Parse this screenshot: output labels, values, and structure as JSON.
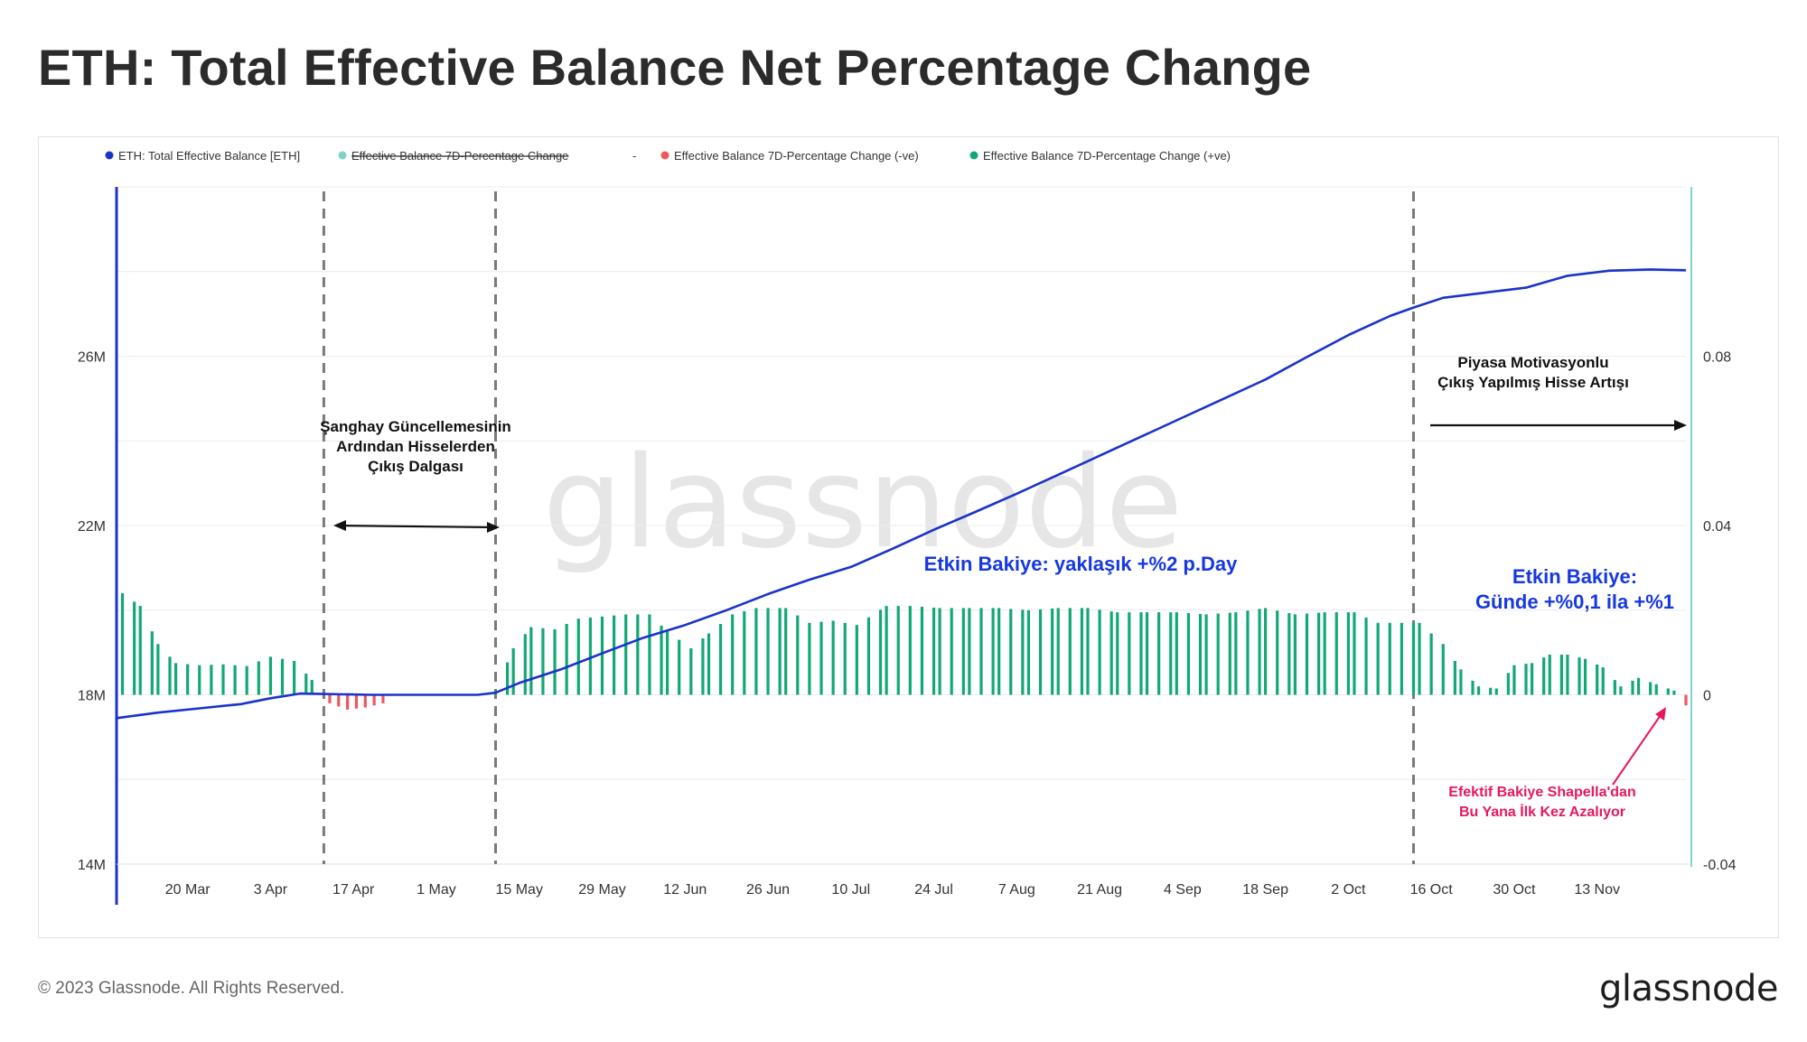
{
  "title": "ETH: Total Effective Balance Net Percentage Change",
  "copyright": "© 2023 Glassnode. All Rights Reserved.",
  "brand": "glassnode",
  "watermark": "glassnode",
  "colors": {
    "balance_line": "#1a33c9",
    "positive_bar": "#12a876",
    "negative_bar": "#f0555c",
    "neutral_legend": "#7fd3c8",
    "right_axis": "#7fd3c8",
    "left_axis": "#1a33c9",
    "annotation_blue": "#1638e0",
    "annotation_pink": "#e8175d"
  },
  "legend": [
    {
      "label": "ETH: Total Effective Balance [ETH]",
      "color": "#1a33c9",
      "strikethrough": false
    },
    {
      "label": "Effective Balance 7D-Percentage Change",
      "color": "#7fd3c8",
      "strikethrough": true
    },
    {
      "label": "-",
      "color": null,
      "strikethrough": false
    },
    {
      "label": "Effective Balance 7D-Percentage Change (-ve)",
      "color": "#f0555c",
      "strikethrough": false
    },
    {
      "label": "Effective Balance 7D-Percentage Change (+ve)",
      "color": "#12a876",
      "strikethrough": false
    }
  ],
  "annotations": {
    "shanghai": [
      "Şanghay Güncellemesinin",
      "Ardından Hisselerden",
      "Çıkış Dalgası"
    ],
    "daily_rate": "Etkin Bakiye: yaklaşık +%2 p.Day",
    "market": [
      "Piyasa Motivasyonlu",
      "Çıkış Yapılmış Hisse Artışı"
    ],
    "late_rate": [
      "Etkin Bakiye:",
      "Günde +%0,1 ila +%1"
    ],
    "first_drop": [
      "Efektif Bakiye Shapella'dan",
      "Bu Yana İlk Kez Azalıyor"
    ]
  },
  "chart_data": {
    "type": "line",
    "title": "ETH: Total Effective Balance Net Percentage Change",
    "x_tick_labels": [
      "20 Mar",
      "3 Apr",
      "17 Apr",
      "1 May",
      "15 May",
      "29 May",
      "12 Jun",
      "26 Jun",
      "10 Jul",
      "24 Jul",
      "7 Aug",
      "21 Aug",
      "4 Sep",
      "18 Sep",
      "2 Oct",
      "16 Oct",
      "30 Oct",
      "13 Nov"
    ],
    "x_range": [
      "2023-03-08",
      "2023-11-28"
    ],
    "y_left": {
      "ticks": [
        "14M",
        "18M",
        "22M",
        "26M"
      ],
      "values": [
        14000000,
        18000000,
        22000000,
        26000000
      ],
      "range": [
        14000000,
        30000000
      ]
    },
    "y_right": {
      "ticks": [
        "-0.04",
        "0",
        "0.04",
        "0.08"
      ],
      "values": [
        -0.04,
        0,
        0.04,
        0.08
      ],
      "range": [
        -0.04,
        0.12
      ]
    },
    "event_markers": [
      "2023-04-12",
      "2023-05-11",
      "2023-10-13"
    ],
    "series": [
      {
        "name": "ETH: Total Effective Balance [ETH]",
        "axis": "left",
        "points": [
          [
            "2023-03-08",
            17.45
          ],
          [
            "2023-03-15",
            17.58
          ],
          [
            "2023-03-22",
            17.68
          ],
          [
            "2023-03-29",
            17.78
          ],
          [
            "2023-04-03",
            17.92
          ],
          [
            "2023-04-08",
            18.03
          ],
          [
            "2023-04-12",
            18.02
          ],
          [
            "2023-04-20",
            18.0
          ],
          [
            "2023-05-01",
            18.0
          ],
          [
            "2023-05-08",
            18.0
          ],
          [
            "2023-05-11",
            18.05
          ],
          [
            "2023-05-15",
            18.28
          ],
          [
            "2023-05-22",
            18.6
          ],
          [
            "2023-05-29",
            18.98
          ],
          [
            "2023-06-05",
            19.35
          ],
          [
            "2023-06-12",
            19.65
          ],
          [
            "2023-06-19",
            20.0
          ],
          [
            "2023-06-26",
            20.38
          ],
          [
            "2023-07-03",
            20.72
          ],
          [
            "2023-07-10",
            21.02
          ],
          [
            "2023-07-17",
            21.45
          ],
          [
            "2023-07-24",
            21.9
          ],
          [
            "2023-07-31",
            22.32
          ],
          [
            "2023-08-07",
            22.75
          ],
          [
            "2023-08-14",
            23.2
          ],
          [
            "2023-08-21",
            23.65
          ],
          [
            "2023-08-28",
            24.1
          ],
          [
            "2023-09-04",
            24.55
          ],
          [
            "2023-09-11",
            25.0
          ],
          [
            "2023-09-18",
            25.45
          ],
          [
            "2023-09-25",
            25.98
          ],
          [
            "2023-10-02",
            26.5
          ],
          [
            "2023-10-09",
            26.95
          ],
          [
            "2023-10-13",
            27.15
          ],
          [
            "2023-10-18",
            27.38
          ],
          [
            "2023-10-25",
            27.5
          ],
          [
            "2023-11-01",
            27.62
          ],
          [
            "2023-11-08",
            27.9
          ],
          [
            "2023-11-15",
            28.02
          ],
          [
            "2023-11-22",
            28.05
          ],
          [
            "2023-11-28",
            28.03
          ]
        ]
      },
      {
        "name": "Effective Balance 7D-Percentage Change (+ve)",
        "axis": "right",
        "points": [
          [
            "2023-03-09",
            0.024
          ],
          [
            "2023-03-12",
            0.021
          ],
          [
            "2023-03-15",
            0.012
          ],
          [
            "2023-03-18",
            0.0075
          ],
          [
            "2023-03-22",
            0.007
          ],
          [
            "2023-03-26",
            0.0072
          ],
          [
            "2023-03-30",
            0.0068
          ],
          [
            "2023-04-03",
            0.009
          ],
          [
            "2023-04-07",
            0.008
          ],
          [
            "2023-04-10",
            0.0035
          ],
          [
            "2023-04-12",
            0.001
          ],
          [
            "2023-05-11",
            0.001
          ],
          [
            "2023-05-14",
            0.011
          ],
          [
            "2023-05-17",
            0.016
          ],
          [
            "2023-05-21",
            0.0155
          ],
          [
            "2023-05-25",
            0.018
          ],
          [
            "2023-05-29",
            0.0185
          ],
          [
            "2023-06-02",
            0.019
          ],
          [
            "2023-06-06",
            0.019
          ],
          [
            "2023-06-09",
            0.015
          ],
          [
            "2023-06-13",
            0.011
          ],
          [
            "2023-06-16",
            0.0145
          ],
          [
            "2023-06-20",
            0.019
          ],
          [
            "2023-06-24",
            0.0205
          ],
          [
            "2023-06-29",
            0.0205
          ],
          [
            "2023-07-03",
            0.017
          ],
          [
            "2023-07-07",
            0.0175
          ],
          [
            "2023-07-11",
            0.0165
          ],
          [
            "2023-07-16",
            0.021
          ],
          [
            "2023-07-20",
            0.021
          ],
          [
            "2023-07-25",
            0.0205
          ],
          [
            "2023-07-30",
            0.0205
          ],
          [
            "2023-08-04",
            0.0205
          ],
          [
            "2023-08-09",
            0.02
          ],
          [
            "2023-08-14",
            0.0205
          ],
          [
            "2023-08-19",
            0.0205
          ],
          [
            "2023-08-24",
            0.0195
          ],
          [
            "2023-08-29",
            0.0195
          ],
          [
            "2023-09-03",
            0.0195
          ],
          [
            "2023-09-08",
            0.019
          ],
          [
            "2023-09-13",
            0.0195
          ],
          [
            "2023-09-18",
            0.0205
          ],
          [
            "2023-09-23",
            0.019
          ],
          [
            "2023-09-28",
            0.0195
          ],
          [
            "2023-10-03",
            0.0195
          ],
          [
            "2023-10-07",
            0.017
          ],
          [
            "2023-10-11",
            0.017
          ],
          [
            "2023-10-14",
            0.017
          ],
          [
            "2023-10-18",
            0.012
          ],
          [
            "2023-10-21",
            0.006
          ],
          [
            "2023-10-24",
            0.002
          ],
          [
            "2023-10-27",
            0.0015
          ],
          [
            "2023-10-30",
            0.007
          ],
          [
            "2023-11-02",
            0.0075
          ],
          [
            "2023-11-05",
            0.0095
          ],
          [
            "2023-11-08",
            0.0095
          ],
          [
            "2023-11-11",
            0.0085
          ],
          [
            "2023-11-14",
            0.0065
          ],
          [
            "2023-11-17",
            0.002
          ],
          [
            "2023-11-20",
            0.004
          ],
          [
            "2023-11-23",
            0.0025
          ],
          [
            "2023-11-26",
            0.001
          ]
        ]
      },
      {
        "name": "Effective Balance 7D-Percentage Change (-ve)",
        "axis": "right",
        "points": [
          [
            "2023-04-13",
            -0.002
          ],
          [
            "2023-04-16",
            -0.0035
          ],
          [
            "2023-04-19",
            -0.003
          ],
          [
            "2023-04-22",
            -0.002
          ],
          [
            "2023-11-28",
            -0.0025
          ]
        ]
      }
    ],
    "grid": true,
    "legend_position": "top-left"
  }
}
